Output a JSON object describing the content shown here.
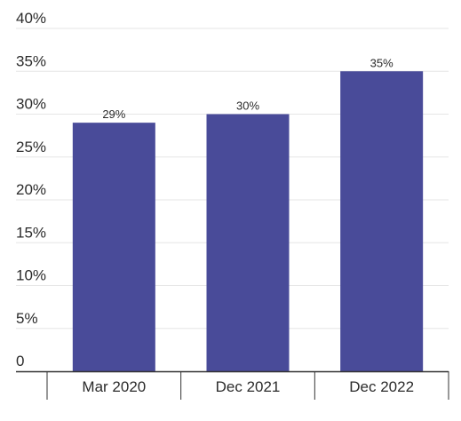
{
  "chart_data": {
    "type": "bar",
    "title": "",
    "xlabel": "",
    "ylabel": "",
    "categories": [
      "Mar 2020",
      "Dec 2021",
      "Dec 2022"
    ],
    "values": [
      29,
      30,
      35
    ],
    "data_labels": [
      "29%",
      "30%",
      "35%"
    ],
    "ylim": [
      0,
      40
    ],
    "yticks": [
      0,
      5,
      10,
      15,
      20,
      25,
      30,
      35,
      40
    ],
    "ytick_labels": [
      "0",
      "5%",
      "10%",
      "15%",
      "20%",
      "25%",
      "30%",
      "35%",
      "40%"
    ],
    "grid": true,
    "legend": "none",
    "colors": {
      "bar": "#494b99",
      "grid": "#e6e6e6",
      "axis": "#333333"
    }
  }
}
